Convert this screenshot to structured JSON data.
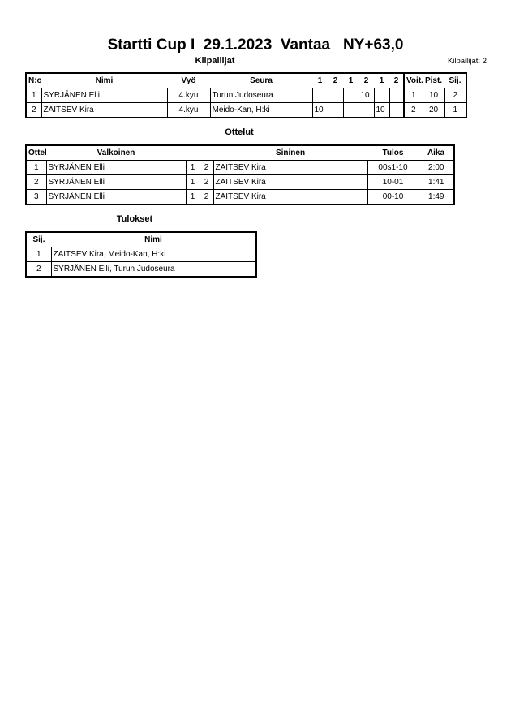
{
  "title": "Startti Cup I  29.1.2023  Vantaa   NY+63,0",
  "competitors_section": {
    "heading": "Kilpailijat",
    "count_label": "Kilpailijat: 2",
    "headers": [
      "N:o",
      "Nimi",
      "Vyö",
      "Seura",
      "1",
      "2",
      "1",
      "2",
      "1",
      "2",
      "Voit.",
      "Pist.",
      "Sij."
    ],
    "rows": [
      [
        "1",
        "SYRJÄNEN Elli",
        "4.kyu",
        "Turun Judoseura",
        "",
        "",
        "",
        "10",
        "",
        "",
        "1",
        "10",
        "2"
      ],
      [
        "2",
        "ZAITSEV Kira",
        "4.kyu",
        "Meido-Kan, H:ki",
        "10",
        "",
        "",
        "",
        "10",
        "",
        "2",
        "20",
        "1"
      ]
    ]
  },
  "matches_section": {
    "heading": "Ottelut",
    "headers": [
      "Ottelu",
      "Valkoinen",
      "",
      "",
      "Sininen",
      "Tulos",
      "Aika"
    ],
    "rows": [
      [
        "1",
        "SYRJÄNEN Elli",
        "1",
        "2",
        "ZAITSEV Kira",
        "00s1-10",
        "2:00"
      ],
      [
        "2",
        "SYRJÄNEN Elli",
        "1",
        "2",
        "ZAITSEV Kira",
        "10-01",
        "1:41"
      ],
      [
        "3",
        "SYRJÄNEN Elli",
        "1",
        "2",
        "ZAITSEV Kira",
        "00-10",
        "1:49"
      ]
    ]
  },
  "results_section": {
    "heading": "Tulokset",
    "headers": [
      "Sij.",
      "Nimi"
    ],
    "rows": [
      [
        "1",
        "ZAITSEV Kira, Meido-Kan, H:ki"
      ],
      [
        "2",
        "SYRJÄNEN Elli, Turun Judoseura"
      ]
    ]
  }
}
